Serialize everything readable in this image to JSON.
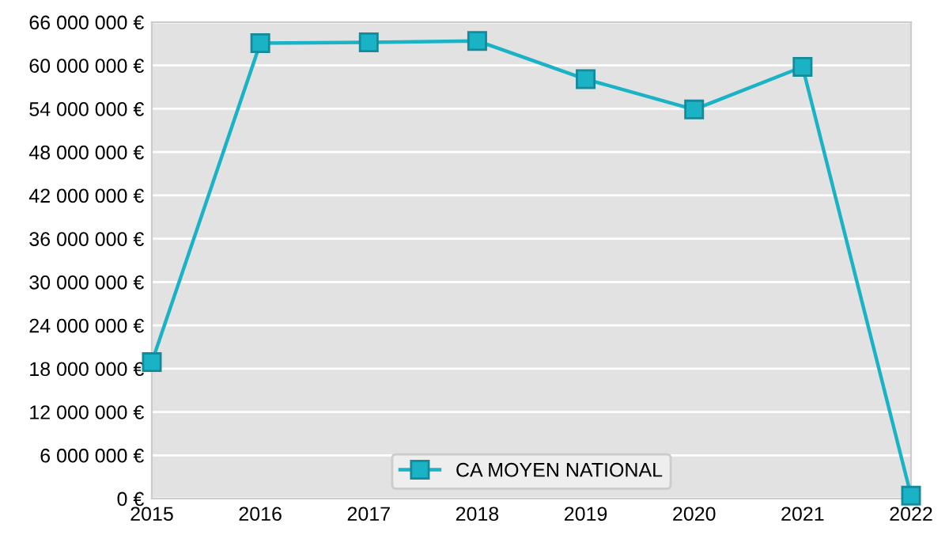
{
  "chart_data": {
    "type": "line",
    "x": [
      2015,
      2016,
      2017,
      2018,
      2019,
      2020,
      2021,
      2022
    ],
    "series": [
      {
        "name": "CA MOYEN NATIONAL",
        "color": "#1ab3c6",
        "values": [
          18900000,
          63100000,
          63200000,
          63400000,
          58100000,
          53900000,
          59800000,
          400000
        ]
      }
    ],
    "xlim": [
      2015,
      2022
    ],
    "xticks": [
      2015,
      2016,
      2017,
      2018,
      2019,
      2020,
      2021,
      2022
    ],
    "ylim": [
      0,
      66000000
    ],
    "yticks": [
      {
        "value": 0,
        "label": "0 €"
      },
      {
        "value": 6000000,
        "label": "6 000 000 €"
      },
      {
        "value": 12000000,
        "label": "12 000 000 €"
      },
      {
        "value": 18000000,
        "label": "18 000 000 €"
      },
      {
        "value": 24000000,
        "label": "24 000 000 €"
      },
      {
        "value": 30000000,
        "label": "30 000 000 €"
      },
      {
        "value": 36000000,
        "label": "36 000 000 €"
      },
      {
        "value": 42000000,
        "label": "42 000 000 €"
      },
      {
        "value": 48000000,
        "label": "48 000 000 €"
      },
      {
        "value": 54000000,
        "label": "54 000 000 €"
      },
      {
        "value": 60000000,
        "label": "60 000 000 €"
      },
      {
        "value": 66000000,
        "label": "66 000 000 €"
      }
    ],
    "grid": "y",
    "legend": "bottom",
    "marker": "square",
    "line_style": "solid"
  }
}
